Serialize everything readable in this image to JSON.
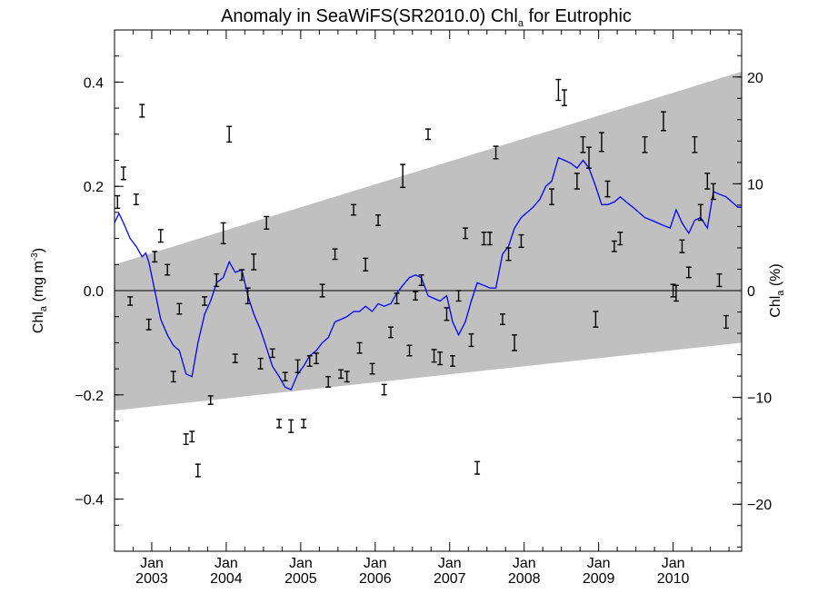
{
  "chart_data": {
    "type": "scatter",
    "title": {
      "main": "Anomaly in SeaWiFS(SR2010.0) Chl",
      "sub": "a",
      "tail": " for Eutrophic"
    },
    "ylabel_left": {
      "main": "Chl",
      "sub": "a",
      "tail": " (mg m",
      "sup": "-3",
      "end": ")"
    },
    "ylabel_right": {
      "main": "Chl",
      "sub": "a",
      "tail": " (%)"
    },
    "xlim": [
      2002.5,
      2010.92
    ],
    "ylim": [
      -0.5,
      0.5
    ],
    "y2lim": [
      -24.4,
      24.4
    ],
    "x_ticks": [
      {
        "x": 2003.0,
        "month": "Jan",
        "year": "2003"
      },
      {
        "x": 2004.0,
        "month": "Jan",
        "year": "2004"
      },
      {
        "x": 2005.0,
        "month": "Jan",
        "year": "2005"
      },
      {
        "x": 2006.0,
        "month": "Jan",
        "year": "2006"
      },
      {
        "x": 2007.0,
        "month": "Jan",
        "year": "2007"
      },
      {
        "x": 2008.0,
        "month": "Jan",
        "year": "2008"
      },
      {
        "x": 2009.0,
        "month": "Jan",
        "year": "2009"
      },
      {
        "x": 2010.0,
        "month": "Jan",
        "year": "2010"
      }
    ],
    "y_ticks": [
      {
        "value": 0.4,
        "label": "0.4"
      },
      {
        "value": 0.2,
        "label": "0.2"
      },
      {
        "value": 0.0,
        "label": "0.0"
      },
      {
        "value": -0.2,
        "label": "−0.2"
      },
      {
        "value": -0.4,
        "label": "−0.4"
      }
    ],
    "y2_ticks": [
      {
        "value": 20,
        "label": "20"
      },
      {
        "value": 10,
        "label": "10"
      },
      {
        "value": 0,
        "label": "0"
      },
      {
        "value": -10,
        "label": "−10"
      },
      {
        "value": -20,
        "label": "−20"
      }
    ],
    "band": {
      "color": "#c0c0c0",
      "x": [
        2002.5,
        2010.92
      ],
      "upper": [
        0.05,
        0.42
      ],
      "lower": [
        -0.23,
        -0.1
      ]
    },
    "zero_line": 0,
    "line_color": "#0000ff",
    "errorbar_color": "#000000",
    "observations": [
      {
        "x": 2002.54,
        "y": 0.17,
        "err": 0.012
      },
      {
        "x": 2002.62,
        "y": 0.225,
        "err": 0.012
      },
      {
        "x": 2002.71,
        "y": -0.02,
        "err": 0.008
      },
      {
        "x": 2002.79,
        "y": 0.175,
        "err": 0.01
      },
      {
        "x": 2002.87,
        "y": 0.345,
        "err": 0.012
      },
      {
        "x": 2002.96,
        "y": -0.065,
        "err": 0.01
      },
      {
        "x": 2003.04,
        "y": 0.065,
        "err": 0.01
      },
      {
        "x": 2003.12,
        "y": 0.105,
        "err": 0.012
      },
      {
        "x": 2003.21,
        "y": 0.04,
        "err": 0.01
      },
      {
        "x": 2003.29,
        "y": -0.165,
        "err": 0.01
      },
      {
        "x": 2003.37,
        "y": -0.035,
        "err": 0.01
      },
      {
        "x": 2003.46,
        "y": -0.285,
        "err": 0.01
      },
      {
        "x": 2003.54,
        "y": -0.28,
        "err": 0.01
      },
      {
        "x": 2003.62,
        "y": -0.345,
        "err": 0.012
      },
      {
        "x": 2003.71,
        "y": -0.02,
        "err": 0.008
      },
      {
        "x": 2003.79,
        "y": -0.21,
        "err": 0.008
      },
      {
        "x": 2003.87,
        "y": 0.02,
        "err": 0.012
      },
      {
        "x": 2003.96,
        "y": 0.11,
        "err": 0.02
      },
      {
        "x": 2004.04,
        "y": 0.3,
        "err": 0.015
      },
      {
        "x": 2004.12,
        "y": -0.13,
        "err": 0.008
      },
      {
        "x": 2004.21,
        "y": 0.03,
        "err": 0.01
      },
      {
        "x": 2004.29,
        "y": -0.01,
        "err": 0.015
      },
      {
        "x": 2004.37,
        "y": 0.055,
        "err": 0.015
      },
      {
        "x": 2004.46,
        "y": -0.14,
        "err": 0.01
      },
      {
        "x": 2004.54,
        "y": 0.13,
        "err": 0.012
      },
      {
        "x": 2004.62,
        "y": -0.12,
        "err": 0.008
      },
      {
        "x": 2004.71,
        "y": -0.255,
        "err": 0.008
      },
      {
        "x": 2004.79,
        "y": -0.165,
        "err": 0.008
      },
      {
        "x": 2004.87,
        "y": -0.26,
        "err": 0.012
      },
      {
        "x": 2004.96,
        "y": -0.145,
        "err": 0.012
      },
      {
        "x": 2005.04,
        "y": -0.255,
        "err": 0.008
      },
      {
        "x": 2005.12,
        "y": -0.135,
        "err": 0.01
      },
      {
        "x": 2005.21,
        "y": -0.13,
        "err": 0.01
      },
      {
        "x": 2005.29,
        "y": 0.0,
        "err": 0.012
      },
      {
        "x": 2005.37,
        "y": -0.175,
        "err": 0.01
      },
      {
        "x": 2005.46,
        "y": 0.07,
        "err": 0.01
      },
      {
        "x": 2005.54,
        "y": -0.16,
        "err": 0.008
      },
      {
        "x": 2005.62,
        "y": -0.165,
        "err": 0.01
      },
      {
        "x": 2005.71,
        "y": 0.155,
        "err": 0.01
      },
      {
        "x": 2005.79,
        "y": -0.11,
        "err": 0.01
      },
      {
        "x": 2005.87,
        "y": 0.05,
        "err": 0.012
      },
      {
        "x": 2005.96,
        "y": -0.15,
        "err": 0.01
      },
      {
        "x": 2006.04,
        "y": 0.135,
        "err": 0.01
      },
      {
        "x": 2006.12,
        "y": -0.19,
        "err": 0.01
      },
      {
        "x": 2006.21,
        "y": -0.08,
        "err": 0.01
      },
      {
        "x": 2006.29,
        "y": -0.015,
        "err": 0.01
      },
      {
        "x": 2006.37,
        "y": 0.22,
        "err": 0.022
      },
      {
        "x": 2006.46,
        "y": -0.115,
        "err": 0.01
      },
      {
        "x": 2006.54,
        "y": -0.01,
        "err": 0.008
      },
      {
        "x": 2006.62,
        "y": 0.02,
        "err": 0.01
      },
      {
        "x": 2006.71,
        "y": 0.3,
        "err": 0.01
      },
      {
        "x": 2006.79,
        "y": -0.125,
        "err": 0.012
      },
      {
        "x": 2006.87,
        "y": -0.13,
        "err": 0.012
      },
      {
        "x": 2006.96,
        "y": -0.045,
        "err": 0.012
      },
      {
        "x": 2007.04,
        "y": -0.135,
        "err": 0.01
      },
      {
        "x": 2007.12,
        "y": -0.01,
        "err": 0.01
      },
      {
        "x": 2007.21,
        "y": 0.11,
        "err": 0.01
      },
      {
        "x": 2007.29,
        "y": -0.095,
        "err": 0.012
      },
      {
        "x": 2007.37,
        "y": -0.34,
        "err": 0.012
      },
      {
        "x": 2007.46,
        "y": 0.1,
        "err": 0.012
      },
      {
        "x": 2007.54,
        "y": 0.1,
        "err": 0.012
      },
      {
        "x": 2007.62,
        "y": 0.265,
        "err": 0.012
      },
      {
        "x": 2007.71,
        "y": -0.055,
        "err": 0.01
      },
      {
        "x": 2007.79,
        "y": 0.07,
        "err": 0.012
      },
      {
        "x": 2007.87,
        "y": -0.1,
        "err": 0.015
      },
      {
        "x": 2007.96,
        "y": 0.095,
        "err": 0.012
      },
      {
        "x": 2008.37,
        "y": 0.18,
        "err": 0.015
      },
      {
        "x": 2008.46,
        "y": 0.385,
        "err": 0.02
      },
      {
        "x": 2008.54,
        "y": 0.37,
        "err": 0.015
      },
      {
        "x": 2008.71,
        "y": 0.21,
        "err": 0.015
      },
      {
        "x": 2008.79,
        "y": 0.28,
        "err": 0.015
      },
      {
        "x": 2008.87,
        "y": 0.255,
        "err": 0.02
      },
      {
        "x": 2008.96,
        "y": -0.055,
        "err": 0.015
      },
      {
        "x": 2009.04,
        "y": 0.285,
        "err": 0.018
      },
      {
        "x": 2009.12,
        "y": 0.195,
        "err": 0.015
      },
      {
        "x": 2009.21,
        "y": 0.085,
        "err": 0.01
      },
      {
        "x": 2009.29,
        "y": 0.1,
        "err": 0.012
      },
      {
        "x": 2009.62,
        "y": 0.28,
        "err": 0.015
      },
      {
        "x": 2009.87,
        "y": 0.325,
        "err": 0.018
      },
      {
        "x": 2010.0,
        "y": 0.0,
        "err": 0.012
      },
      {
        "x": 2010.04,
        "y": -0.005,
        "err": 0.015
      },
      {
        "x": 2010.12,
        "y": 0.085,
        "err": 0.012
      },
      {
        "x": 2010.21,
        "y": 0.035,
        "err": 0.01
      },
      {
        "x": 2010.29,
        "y": 0.28,
        "err": 0.015
      },
      {
        "x": 2010.37,
        "y": 0.15,
        "err": 0.015
      },
      {
        "x": 2010.46,
        "y": 0.21,
        "err": 0.015
      },
      {
        "x": 2010.54,
        "y": 0.19,
        "err": 0.015
      },
      {
        "x": 2010.62,
        "y": 0.02,
        "err": 0.012
      },
      {
        "x": 2010.71,
        "y": -0.06,
        "err": 0.012
      }
    ],
    "smoothed": [
      [
        2002.5,
        0.13
      ],
      [
        2002.56,
        0.148
      ],
      [
        2002.62,
        0.13
      ],
      [
        2002.71,
        0.1
      ],
      [
        2002.79,
        0.085
      ],
      [
        2002.87,
        0.065
      ],
      [
        2002.92,
        0.072
      ],
      [
        2002.96,
        0.055
      ],
      [
        2003.04,
        0.0
      ],
      [
        2003.12,
        -0.055
      ],
      [
        2003.21,
        -0.085
      ],
      [
        2003.29,
        -0.105
      ],
      [
        2003.37,
        -0.115
      ],
      [
        2003.46,
        -0.16
      ],
      [
        2003.54,
        -0.165
      ],
      [
        2003.62,
        -0.1
      ],
      [
        2003.71,
        -0.045
      ],
      [
        2003.79,
        -0.02
      ],
      [
        2003.87,
        0.015
      ],
      [
        2003.96,
        0.025
      ],
      [
        2004.04,
        0.055
      ],
      [
        2004.12,
        0.035
      ],
      [
        2004.21,
        0.04
      ],
      [
        2004.29,
        -0.01
      ],
      [
        2004.37,
        -0.045
      ],
      [
        2004.46,
        -0.075
      ],
      [
        2004.54,
        -0.11
      ],
      [
        2004.62,
        -0.145
      ],
      [
        2004.71,
        -0.165
      ],
      [
        2004.79,
        -0.185
      ],
      [
        2004.87,
        -0.19
      ],
      [
        2004.96,
        -0.16
      ],
      [
        2005.04,
        -0.145
      ],
      [
        2005.12,
        -0.125
      ],
      [
        2005.21,
        -0.115
      ],
      [
        2005.29,
        -0.1
      ],
      [
        2005.37,
        -0.09
      ],
      [
        2005.46,
        -0.06
      ],
      [
        2005.54,
        -0.055
      ],
      [
        2005.62,
        -0.05
      ],
      [
        2005.71,
        -0.04
      ],
      [
        2005.79,
        -0.04
      ],
      [
        2005.87,
        -0.03
      ],
      [
        2005.96,
        -0.04
      ],
      [
        2006.04,
        -0.025
      ],
      [
        2006.12,
        -0.03
      ],
      [
        2006.21,
        -0.025
      ],
      [
        2006.29,
        -0.005
      ],
      [
        2006.37,
        0.01
      ],
      [
        2006.46,
        0.025
      ],
      [
        2006.54,
        0.03
      ],
      [
        2006.62,
        0.025
      ],
      [
        2006.71,
        -0.01
      ],
      [
        2006.79,
        -0.015
      ],
      [
        2006.87,
        -0.02
      ],
      [
        2006.96,
        -0.01
      ],
      [
        2007.04,
        -0.06
      ],
      [
        2007.12,
        -0.085
      ],
      [
        2007.21,
        -0.06
      ],
      [
        2007.29,
        -0.02
      ],
      [
        2007.37,
        0.015
      ],
      [
        2007.46,
        0.01
      ],
      [
        2007.54,
        0.005
      ],
      [
        2007.62,
        0.005
      ],
      [
        2007.71,
        0.07
      ],
      [
        2007.79,
        0.085
      ],
      [
        2007.87,
        0.12
      ],
      [
        2007.96,
        0.14
      ],
      [
        2008.04,
        0.15
      ],
      [
        2008.12,
        0.16
      ],
      [
        2008.21,
        0.175
      ],
      [
        2008.29,
        0.2
      ],
      [
        2008.37,
        0.21
      ],
      [
        2008.46,
        0.255
      ],
      [
        2008.54,
        0.25
      ],
      [
        2008.62,
        0.245
      ],
      [
        2008.71,
        0.235
      ],
      [
        2008.79,
        0.25
      ],
      [
        2008.87,
        0.235
      ],
      [
        2008.96,
        0.2
      ],
      [
        2009.04,
        0.165
      ],
      [
        2009.12,
        0.165
      ],
      [
        2009.21,
        0.17
      ],
      [
        2009.29,
        0.18
      ],
      [
        2009.37,
        0.17
      ],
      [
        2009.46,
        0.16
      ],
      [
        2009.54,
        0.15
      ],
      [
        2009.62,
        0.14
      ],
      [
        2009.71,
        0.135
      ],
      [
        2009.79,
        0.13
      ],
      [
        2009.87,
        0.125
      ],
      [
        2009.96,
        0.12
      ],
      [
        2010.04,
        0.155
      ],
      [
        2010.12,
        0.13
      ],
      [
        2010.21,
        0.11
      ],
      [
        2010.29,
        0.135
      ],
      [
        2010.37,
        0.14
      ],
      [
        2010.46,
        0.12
      ],
      [
        2010.54,
        0.19
      ],
      [
        2010.62,
        0.185
      ],
      [
        2010.71,
        0.18
      ],
      [
        2010.79,
        0.17
      ],
      [
        2010.87,
        0.16
      ],
      [
        2010.92,
        0.16
      ]
    ]
  }
}
